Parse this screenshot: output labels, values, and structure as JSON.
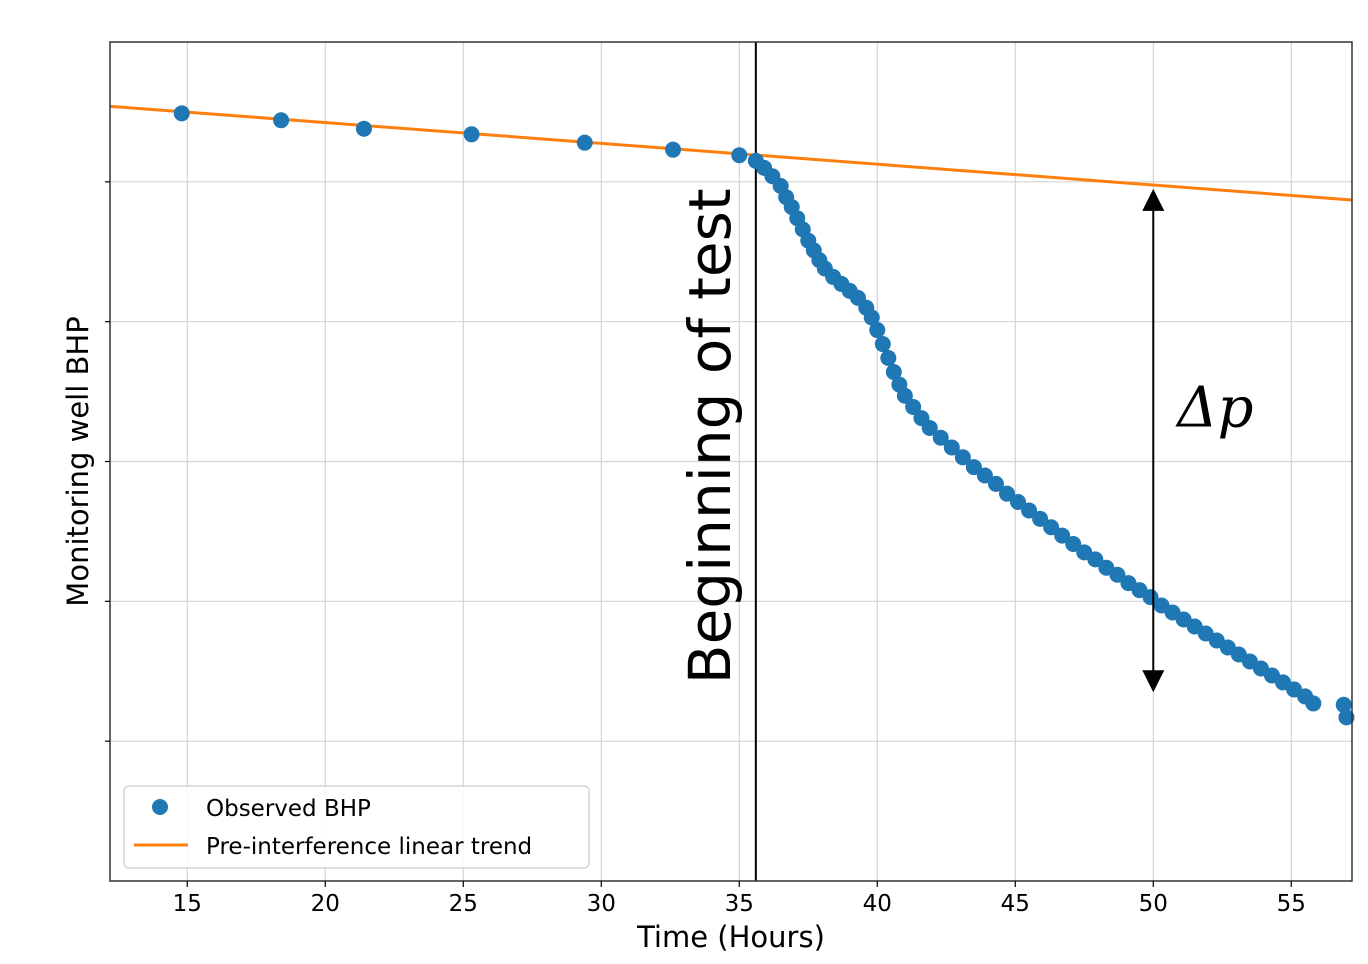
{
  "chart_data": {
    "type": "scatter",
    "title": "",
    "xlabel": "Time (Hours)",
    "ylabel": "Monitoring well BHP",
    "xlim": [
      12.2,
      57.2
    ],
    "ylim": [
      0,
      6
    ],
    "x_ticks": [
      15,
      20,
      25,
      30,
      35,
      40,
      45,
      50,
      55
    ],
    "y_gridlines": [
      1,
      2,
      3,
      4,
      5
    ],
    "grid": true,
    "legend_position": "lower-left",
    "colors": {
      "observed": "#1f77b4",
      "trend": "#ff7f0e",
      "annotation": "#000000"
    },
    "series": [
      {
        "name": "Observed BHP",
        "kind": "scatter",
        "points": [
          {
            "x": 14.8,
            "y": 5.49
          },
          {
            "x": 18.4,
            "y": 5.44
          },
          {
            "x": 21.4,
            "y": 5.38
          },
          {
            "x": 25.3,
            "y": 5.34
          },
          {
            "x": 29.4,
            "y": 5.28
          },
          {
            "x": 32.6,
            "y": 5.23
          },
          {
            "x": 35.0,
            "y": 5.19
          },
          {
            "x": 35.6,
            "y": 5.15
          },
          {
            "x": 35.9,
            "y": 5.1
          },
          {
            "x": 36.2,
            "y": 5.04
          },
          {
            "x": 36.5,
            "y": 4.97
          },
          {
            "x": 36.7,
            "y": 4.89
          },
          {
            "x": 36.9,
            "y": 4.82
          },
          {
            "x": 37.1,
            "y": 4.74
          },
          {
            "x": 37.3,
            "y": 4.66
          },
          {
            "x": 37.5,
            "y": 4.58
          },
          {
            "x": 37.7,
            "y": 4.51
          },
          {
            "x": 37.9,
            "y": 4.44
          },
          {
            "x": 38.1,
            "y": 4.38
          },
          {
            "x": 38.4,
            "y": 4.32
          },
          {
            "x": 38.7,
            "y": 4.27
          },
          {
            "x": 39.0,
            "y": 4.22
          },
          {
            "x": 39.3,
            "y": 4.17
          },
          {
            "x": 39.6,
            "y": 4.1
          },
          {
            "x": 39.8,
            "y": 4.03
          },
          {
            "x": 40.0,
            "y": 3.94
          },
          {
            "x": 40.2,
            "y": 3.84
          },
          {
            "x": 40.4,
            "y": 3.74
          },
          {
            "x": 40.6,
            "y": 3.64
          },
          {
            "x": 40.8,
            "y": 3.55
          },
          {
            "x": 41.0,
            "y": 3.47
          },
          {
            "x": 41.3,
            "y": 3.39
          },
          {
            "x": 41.6,
            "y": 3.31
          },
          {
            "x": 41.9,
            "y": 3.24
          },
          {
            "x": 42.3,
            "y": 3.17
          },
          {
            "x": 42.7,
            "y": 3.1
          },
          {
            "x": 43.1,
            "y": 3.03
          },
          {
            "x": 43.5,
            "y": 2.96
          },
          {
            "x": 43.9,
            "y": 2.9
          },
          {
            "x": 44.3,
            "y": 2.84
          },
          {
            "x": 44.7,
            "y": 2.77
          },
          {
            "x": 45.1,
            "y": 2.71
          },
          {
            "x": 45.5,
            "y": 2.65
          },
          {
            "x": 45.9,
            "y": 2.59
          },
          {
            "x": 46.3,
            "y": 2.53
          },
          {
            "x": 46.7,
            "y": 2.47
          },
          {
            "x": 47.1,
            "y": 2.41
          },
          {
            "x": 47.5,
            "y": 2.35
          },
          {
            "x": 47.9,
            "y": 2.3
          },
          {
            "x": 48.3,
            "y": 2.24
          },
          {
            "x": 48.7,
            "y": 2.19
          },
          {
            "x": 49.1,
            "y": 2.13
          },
          {
            "x": 49.5,
            "y": 2.08
          },
          {
            "x": 49.9,
            "y": 2.03
          },
          {
            "x": 50.3,
            "y": 1.97
          },
          {
            "x": 50.7,
            "y": 1.92
          },
          {
            "x": 51.1,
            "y": 1.87
          },
          {
            "x": 51.5,
            "y": 1.82
          },
          {
            "x": 51.9,
            "y": 1.77
          },
          {
            "x": 52.3,
            "y": 1.72
          },
          {
            "x": 52.7,
            "y": 1.67
          },
          {
            "x": 53.1,
            "y": 1.62
          },
          {
            "x": 53.5,
            "y": 1.57
          },
          {
            "x": 53.9,
            "y": 1.52
          },
          {
            "x": 54.3,
            "y": 1.47
          },
          {
            "x": 54.7,
            "y": 1.42
          },
          {
            "x": 55.1,
            "y": 1.37
          },
          {
            "x": 55.5,
            "y": 1.32
          },
          {
            "x": 55.8,
            "y": 1.27
          },
          {
            "x": 56.9,
            "y": 1.26
          },
          {
            "x": 57.0,
            "y": 1.17
          }
        ]
      },
      {
        "name": "Pre-interference linear trend",
        "kind": "line",
        "points": [
          {
            "x": 12.2,
            "y": 5.54
          },
          {
            "x": 57.2,
            "y": 4.87
          }
        ]
      }
    ],
    "annotations": [
      {
        "type": "vline",
        "x": 35.6,
        "label": "Beginning of test"
      },
      {
        "type": "double-arrow",
        "x": 50.0,
        "y_top": 4.95,
        "y_bottom": 1.35,
        "label": "Δp"
      }
    ]
  }
}
